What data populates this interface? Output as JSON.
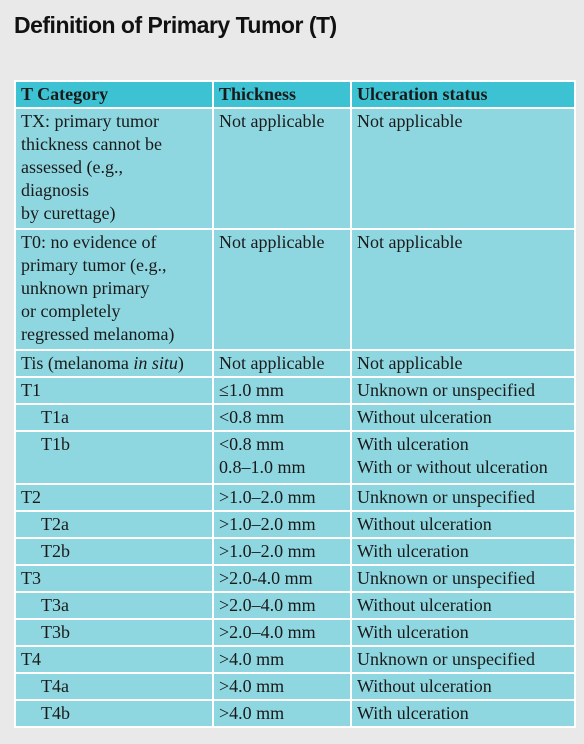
{
  "title": "Definition of Primary Tumor (T)",
  "table": {
    "header": [
      "T Category",
      "Thickness",
      "Ulceration status"
    ],
    "rows": [
      [
        [
          "TX: primary tumor",
          "thickness cannot be",
          "assessed (e.g.,",
          "diagnosis",
          "by curettage)"
        ],
        "Not applicable",
        "Not applicable"
      ],
      [
        [
          "T0: no evidence of",
          "primary tumor (e.g.,",
          "unknown primary",
          "or completely",
          "regressed melanoma)"
        ],
        "Not applicable",
        "Not applicable"
      ],
      [
        [
          "Tis (melanoma ",
          "in situ",
          ")"
        ],
        "Not applicable",
        "Not applicable"
      ],
      [
        "T1",
        "≤1.0 mm",
        "Unknown or unspecified"
      ],
      [
        "T1a",
        "<0.8 mm",
        "Without ulceration"
      ],
      [
        "T1b",
        [
          "<0.8 mm",
          "0.8–1.0 mm"
        ],
        [
          "With ulceration",
          "With or without ulceration"
        ]
      ],
      [
        "T2",
        ">1.0–2.0 mm",
        "Unknown or unspecified"
      ],
      [
        "T2a",
        ">1.0–2.0 mm",
        "Without ulceration"
      ],
      [
        "T2b",
        ">1.0–2.0 mm",
        "With ulceration"
      ],
      [
        "T3",
        ">2.0-4.0 mm",
        "Unknown or unspecified"
      ],
      [
        "T3a",
        ">2.0–4.0 mm",
        "Without ulceration"
      ],
      [
        "T3b",
        ">2.0–4.0 mm",
        "With ulceration"
      ],
      [
        "T4",
        ">4.0 mm",
        "Unknown or unspecified"
      ],
      [
        "T4a",
        ">4.0 mm",
        "Without ulceration"
      ],
      [
        "T4b",
        ">4.0 mm",
        "With ulceration"
      ]
    ]
  }
}
